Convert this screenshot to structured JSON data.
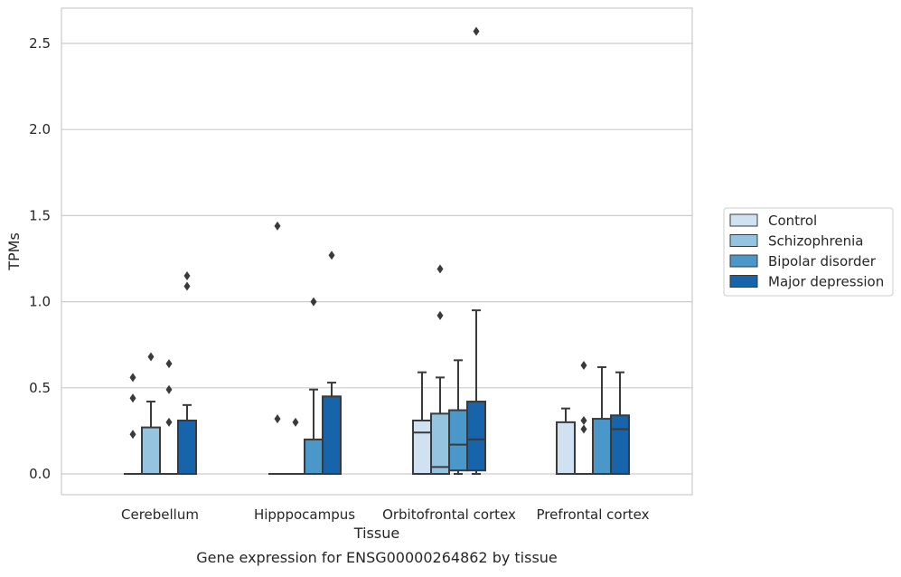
{
  "chart_data": {
    "type": "box",
    "xlabel": "Tissue",
    "ylabel": "TPMs",
    "caption": "Gene expression for ENSG00000264862 by tissue",
    "ylim": [
      -0.12,
      2.7
    ],
    "yticks": [
      "0.0",
      "0.5",
      "1.0",
      "1.5",
      "2.0",
      "2.5"
    ],
    "ytick_values": [
      0,
      0.5,
      1.0,
      1.5,
      2.0,
      2.5
    ],
    "grid": "horizontal",
    "legend_position": "right",
    "categories": [
      "Cerebellum",
      "Hipppocampus",
      "Orbitofrontal cortex",
      "Prefrontal cortex"
    ],
    "series": [
      {
        "name": "Control",
        "color": "#d0e1f2",
        "boxes": [
          {
            "q1": 0,
            "median": 0,
            "q3": 0,
            "whislo": 0,
            "whishi": 0,
            "fliers": [
              0.23,
              0.44,
              0.56
            ]
          },
          {
            "q1": 0,
            "median": 0,
            "q3": 0,
            "whislo": 0,
            "whishi": 0,
            "fliers": [
              0.32,
              1.44
            ]
          },
          {
            "q1": 0,
            "median": 0.24,
            "q3": 0.31,
            "whislo": 0,
            "whishi": 0.59,
            "fliers": []
          },
          {
            "q1": 0,
            "median": 0,
            "q3": 0.3,
            "whislo": 0,
            "whishi": 0.38,
            "fliers": []
          }
        ]
      },
      {
        "name": "Schizophrenia",
        "color": "#94c4df",
        "boxes": [
          {
            "q1": 0,
            "median": 0,
            "q3": 0.27,
            "whislo": 0,
            "whishi": 0.42,
            "fliers": [
              0.68
            ]
          },
          {
            "q1": 0,
            "median": 0,
            "q3": 0,
            "whislo": 0,
            "whishi": 0,
            "fliers": [
              0.3
            ]
          },
          {
            "q1": 0,
            "median": 0.04,
            "q3": 0.35,
            "whislo": 0,
            "whishi": 0.56,
            "fliers": [
              0.92,
              1.19
            ]
          },
          {
            "q1": 0,
            "median": 0,
            "q3": 0,
            "whislo": 0,
            "whishi": 0,
            "fliers": [
              0.26,
              0.31,
              0.63
            ]
          }
        ]
      },
      {
        "name": "Bipolar disorder",
        "color": "#4a98c9",
        "boxes": [
          {
            "q1": 0,
            "median": 0,
            "q3": 0,
            "whislo": 0,
            "whishi": 0,
            "fliers": [
              0.3,
              0.49,
              0.64
            ]
          },
          {
            "q1": 0,
            "median": 0,
            "q3": 0.2,
            "whislo": 0,
            "whishi": 0.49,
            "fliers": [
              1.0
            ]
          },
          {
            "q1": 0.02,
            "median": 0.17,
            "q3": 0.37,
            "whislo": 0,
            "whishi": 0.66,
            "fliers": []
          },
          {
            "q1": 0,
            "median": 0,
            "q3": 0.32,
            "whislo": 0,
            "whishi": 0.62,
            "fliers": []
          }
        ]
      },
      {
        "name": "Major depression",
        "color": "#1764ab",
        "boxes": [
          {
            "q1": 0,
            "median": 0,
            "q3": 0.31,
            "whislo": 0,
            "whishi": 0.4,
            "fliers": [
              1.09,
              1.15
            ]
          },
          {
            "q1": 0,
            "median": 0,
            "q3": 0.45,
            "whislo": 0,
            "whishi": 0.53,
            "fliers": [
              1.27
            ]
          },
          {
            "q1": 0.02,
            "median": 0.2,
            "q3": 0.42,
            "whislo": 0,
            "whishi": 0.95,
            "fliers": [
              2.57
            ]
          },
          {
            "q1": 0,
            "median": 0.26,
            "q3": 0.34,
            "whislo": 0,
            "whishi": 0.59,
            "fliers": []
          }
        ]
      }
    ]
  }
}
